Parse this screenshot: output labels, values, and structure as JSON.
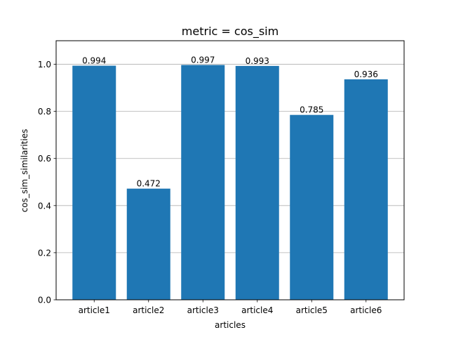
{
  "chart_data": {
    "type": "bar",
    "title": "metric = cos_sim",
    "xlabel": "articles",
    "ylabel": "cos_sim_similarities",
    "categories": [
      "article1",
      "article2",
      "article3",
      "article4",
      "article5",
      "article6"
    ],
    "values": [
      0.994,
      0.472,
      0.997,
      0.993,
      0.785,
      0.936
    ],
    "data_labels": [
      "0.994",
      "0.472",
      "0.997",
      "0.993",
      "0.785",
      "0.936"
    ],
    "ylim": [
      0,
      1.1
    ],
    "yticks": [
      0.0,
      0.2,
      0.4,
      0.6,
      0.8,
      1.0
    ],
    "ytick_labels": [
      "0.0",
      "0.2",
      "0.4",
      "0.6",
      "0.8",
      "1.0"
    ],
    "grid": "y",
    "bar_color": "#1f77b4"
  }
}
